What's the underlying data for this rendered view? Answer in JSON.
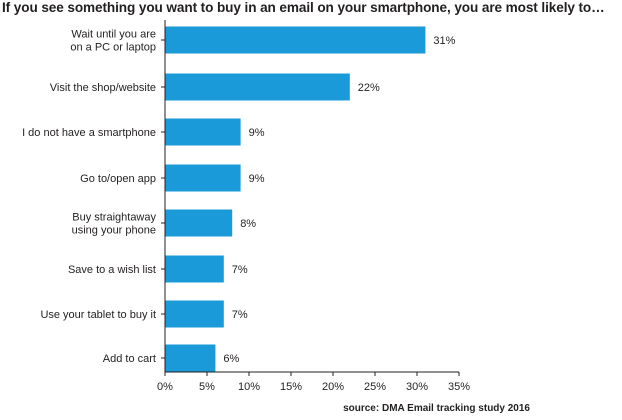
{
  "chart_data": {
    "type": "bar",
    "orientation": "horizontal",
    "title": "If you see something you want to buy in an email on your smartphone, you are most likely to…",
    "source": "source: DMA Email tracking study 2016",
    "categories": [
      [
        "Wait until you are",
        "on a PC or laptop"
      ],
      [
        "Visit the shop/website"
      ],
      [
        "I do not have a smartphone"
      ],
      [
        "Go to/open app"
      ],
      [
        "Buy straightaway",
        "using your phone"
      ],
      [
        "Save to a wish list"
      ],
      [
        "Use your tablet to buy it"
      ],
      [
        "Add to cart"
      ]
    ],
    "values": [
      31,
      22,
      9,
      9,
      8,
      7,
      7,
      6
    ],
    "value_labels": [
      "31%",
      "22%",
      "9%",
      "9%",
      "8%",
      "7%",
      "7%",
      "6%"
    ],
    "xlim": [
      0,
      35
    ],
    "x_ticks": [
      0,
      5,
      10,
      15,
      20,
      25,
      30,
      35
    ],
    "x_tick_labels": [
      "0%",
      "5%",
      "10%",
      "15%",
      "20%",
      "25%",
      "30%",
      "35%"
    ],
    "bar_color": "#1a9ad9",
    "axis_color": "#231f20",
    "grid": false,
    "legend": false
  }
}
